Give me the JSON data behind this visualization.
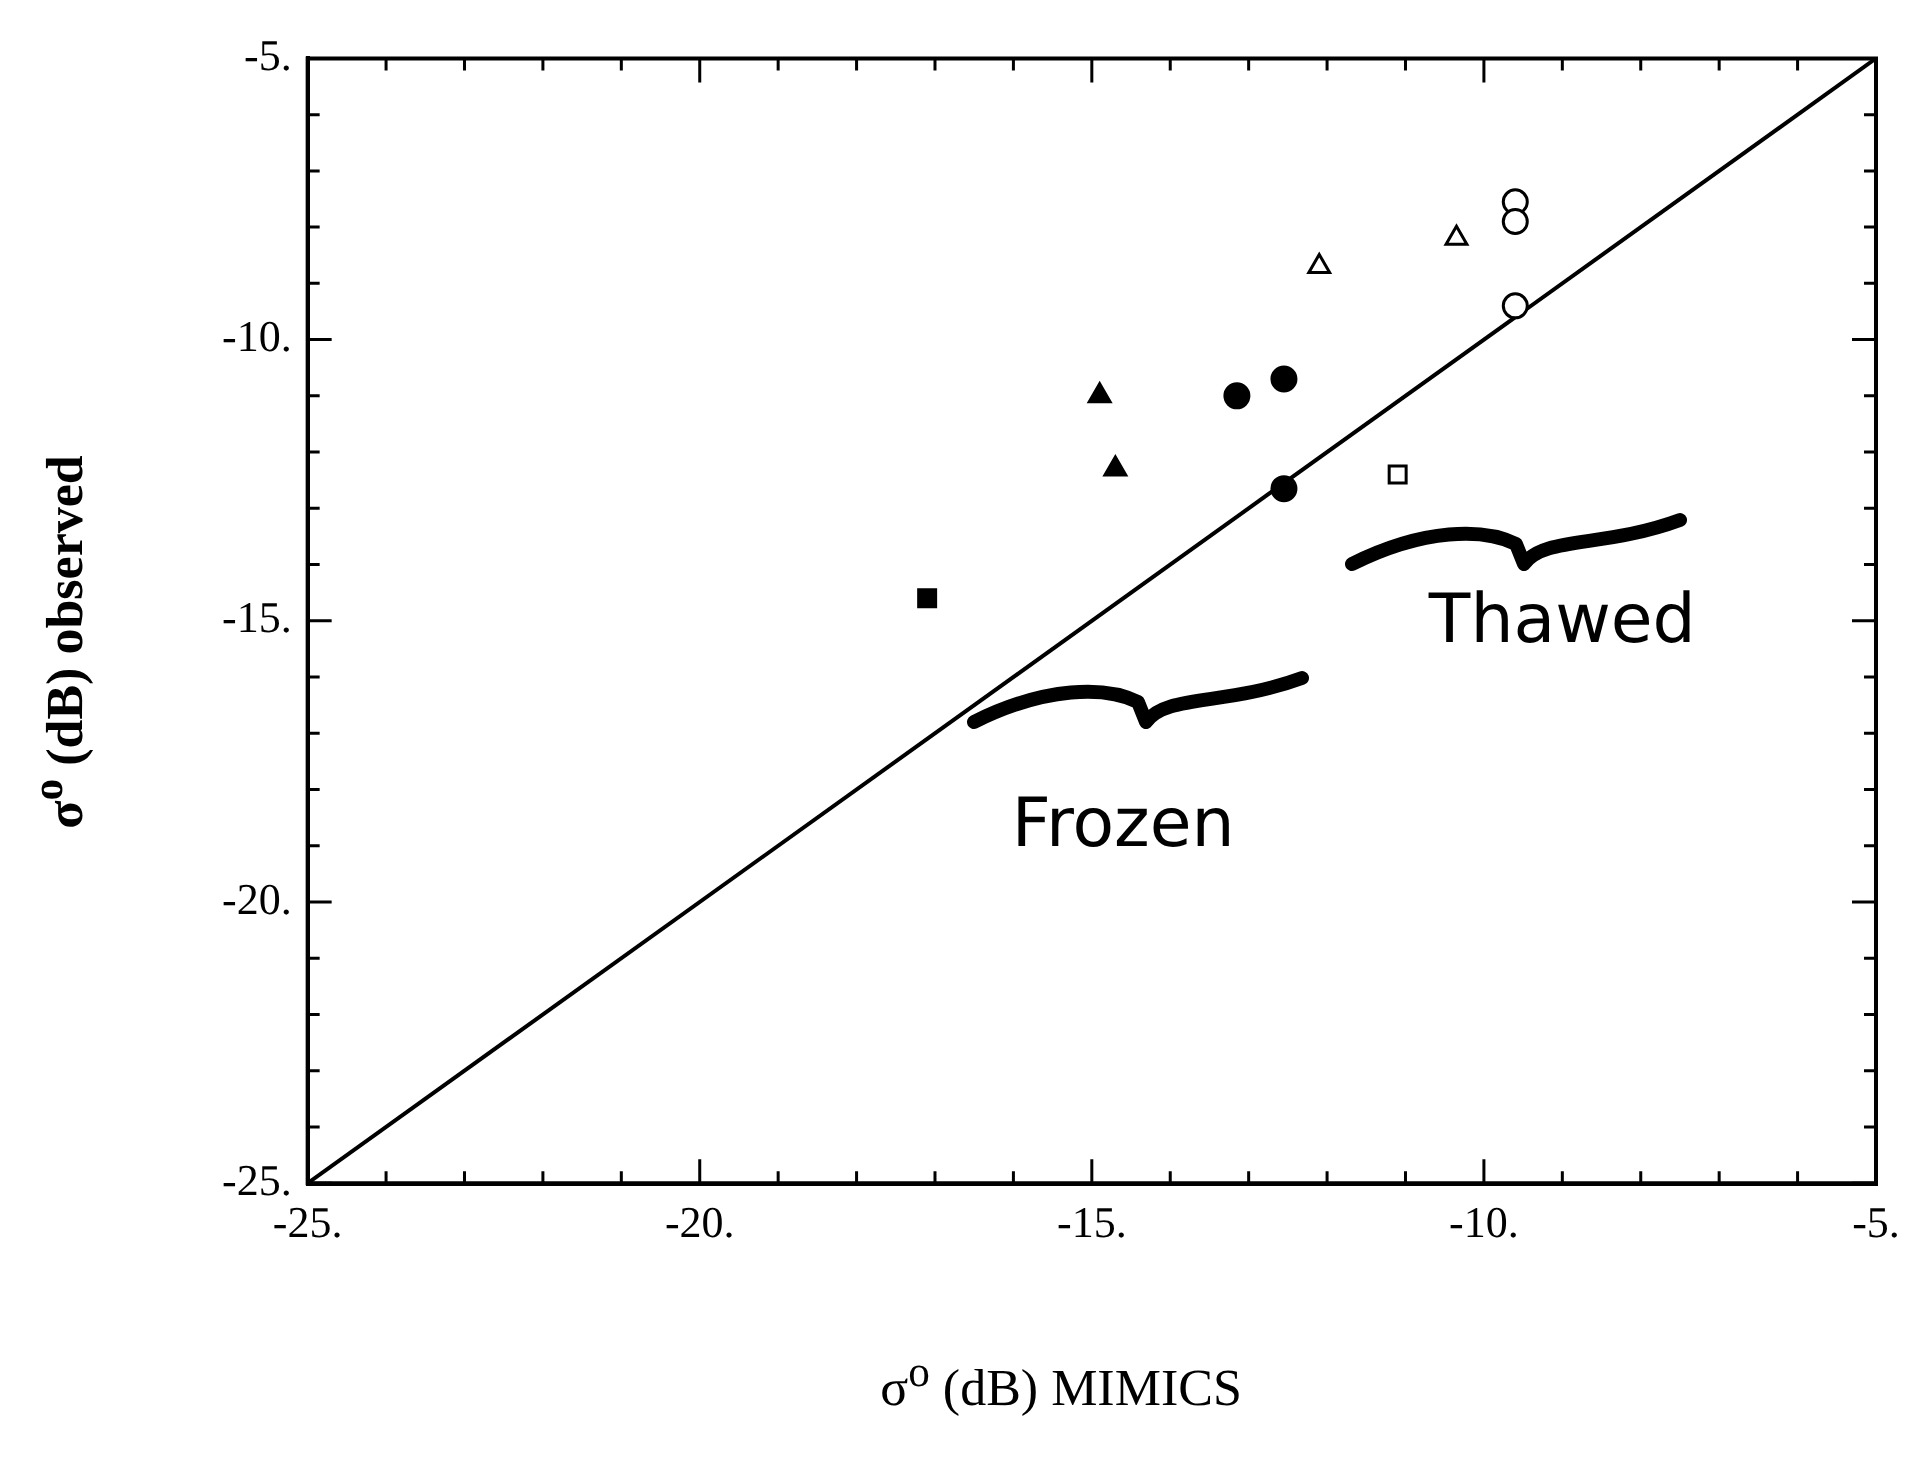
{
  "chart_data": {
    "type": "scatter",
    "xlabel": "σ$^{o}$ (dB) MIMICS",
    "ylabel": "σ$^{o}$ (dB) observed",
    "xlim": [
      -25,
      -5
    ],
    "ylim": [
      -25,
      -5
    ],
    "xticks": [
      {
        "value": -25,
        "label": "-25."
      },
      {
        "value": -24,
        "label": null
      },
      {
        "value": -23,
        "label": null
      },
      {
        "value": -22,
        "label": null
      },
      {
        "value": -21,
        "label": null
      },
      {
        "value": -20,
        "label": "-20."
      },
      {
        "value": -19,
        "label": null
      },
      {
        "value": -18,
        "label": null
      },
      {
        "value": -17,
        "label": null
      },
      {
        "value": -16,
        "label": null
      },
      {
        "value": -15,
        "label": "-15."
      },
      {
        "value": -14,
        "label": null
      },
      {
        "value": -13,
        "label": null
      },
      {
        "value": -12,
        "label": null
      },
      {
        "value": -11,
        "label": null
      },
      {
        "value": -10,
        "label": "-10."
      },
      {
        "value": -9,
        "label": null
      },
      {
        "value": -8,
        "label": null
      },
      {
        "value": -7,
        "label": null
      },
      {
        "value": -6,
        "label": null
      },
      {
        "value": -5,
        "label": "-5."
      }
    ],
    "yticks": [
      {
        "value": -25,
        "label": "-25."
      },
      {
        "value": -24,
        "label": null
      },
      {
        "value": -23,
        "label": null
      },
      {
        "value": -22,
        "label": null
      },
      {
        "value": -21,
        "label": null
      },
      {
        "value": -20,
        "label": "-20."
      },
      {
        "value": -19,
        "label": null
      },
      {
        "value": -18,
        "label": null
      },
      {
        "value": -17,
        "label": null
      },
      {
        "value": -16,
        "label": null
      },
      {
        "value": -15,
        "label": "-15."
      },
      {
        "value": -14,
        "label": null
      },
      {
        "value": -13,
        "label": null
      },
      {
        "value": -12,
        "label": null
      },
      {
        "value": -11,
        "label": null
      },
      {
        "value": -10,
        "label": "-10."
      },
      {
        "value": -9,
        "label": null
      },
      {
        "value": -8,
        "label": null
      },
      {
        "value": -7,
        "label": null
      },
      {
        "value": -6,
        "label": null
      },
      {
        "value": -5,
        "label": "-5."
      }
    ],
    "grid": false,
    "legend": false,
    "series": [
      {
        "type": "line",
        "color": "#000000",
        "marker": "none",
        "line_style": "solid",
        "x": [
          -25,
          -5
        ],
        "values": [
          -25,
          -5
        ]
      },
      {
        "color": "#000000",
        "marker": "square",
        "x": [
          -17.1
        ],
        "values": [
          -14.6
        ]
      },
      {
        "color": "#000000",
        "marker": "triangle",
        "x": [
          -14.9,
          -14.7
        ],
        "values": [
          -11.0,
          -12.3
        ]
      },
      {
        "color": "#000000",
        "marker": "circle",
        "x": [
          -13.15,
          -12.55,
          -12.55
        ],
        "values": [
          -11.0,
          -10.7,
          -12.65
        ]
      },
      {
        "color": "#ffffff",
        "marker": "triangle",
        "x": [
          -12.1,
          -10.35
        ],
        "values": [
          -8.7,
          -8.2
        ]
      },
      {
        "color": "#ffffff",
        "marker": "square",
        "x": [
          -11.1
        ],
        "values": [
          -12.4
        ]
      },
      {
        "color": "#ffffff",
        "marker": "circle",
        "x": [
          -9.6,
          -9.6,
          -9.6
        ],
        "values": [
          -7.55,
          -7.9,
          -9.4
        ]
      }
    ],
    "annotations": [
      "Frozen",
      "Thawed"
    ]
  }
}
